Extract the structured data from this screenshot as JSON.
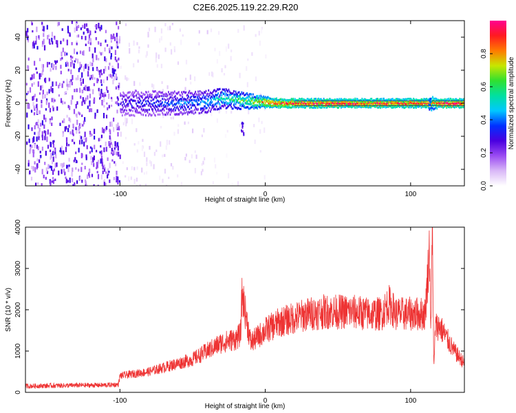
{
  "figure": {
    "title": "C2E6.2025.119.22.29.R20"
  },
  "chart_data": [
    {
      "type": "heatmap",
      "xlabel": "Height of straight line (km)",
      "ylabel": "Frequency (Hz)",
      "xlim": [
        -165,
        137
      ],
      "ylim": [
        -50,
        50
      ],
      "xticks": [
        -100,
        0,
        100
      ],
      "yticks": [
        -40,
        -20,
        0,
        20,
        40
      ],
      "grid": false,
      "colorbar": {
        "label": "Normalized spectral amplitude",
        "range": [
          0.0,
          1.0
        ],
        "ticks": [
          0.0,
          0.2,
          0.4,
          0.6,
          0.8
        ],
        "colors": [
          "#ffffff",
          "#d9b8f7",
          "#9b4cf2",
          "#4a00e0",
          "#0030ff",
          "#00c8ff",
          "#00e0a0",
          "#30e030",
          "#c8e600",
          "#ff7a00",
          "#ff1a20",
          "#ff0090"
        ]
      },
      "regions": [
        {
          "x_range": [
            -165,
            -100
          ],
          "freq_range": [
            -50,
            50
          ],
          "amplitude": 0.22,
          "description": "dense noise"
        },
        {
          "x_range": [
            -100,
            -40
          ],
          "freq_range": [
            -50,
            50
          ],
          "amplitude": 0.05,
          "description": "sparse noise"
        },
        {
          "x_range": [
            -40,
            0
          ],
          "freq_range": [
            -50,
            50
          ],
          "amplitude": 0.03,
          "description": "sparse noise"
        }
      ],
      "ridge": {
        "x": [
          -100,
          -80,
          -60,
          -40,
          -30,
          -20,
          -10,
          0,
          10,
          20,
          40,
          60,
          80,
          100,
          110,
          115,
          120,
          137
        ],
        "freq": [
          0,
          0,
          0,
          1,
          3,
          2,
          1,
          0.5,
          0,
          0,
          0,
          0,
          0,
          0,
          0,
          0,
          0,
          0
        ],
        "amplitude": [
          0.3,
          0.35,
          0.4,
          0.45,
          0.55,
          0.6,
          0.7,
          0.85,
          0.95,
          0.95,
          0.95,
          0.95,
          0.95,
          0.95,
          0.95,
          0.8,
          0.95,
          0.95
        ]
      },
      "features": [
        {
          "x": -16,
          "freq": -15,
          "amplitude": 0.25
        },
        {
          "x": 113,
          "freq": 0,
          "amplitude": 0.4
        }
      ]
    },
    {
      "type": "line",
      "xlabel": "Height of straight line (km)",
      "ylabel": "SNR (10 * v/v)",
      "xlim": [
        -165,
        137
      ],
      "ylim": [
        0,
        4000
      ],
      "xticks": [
        -100,
        0,
        100
      ],
      "yticks": [
        0,
        1000,
        2000,
        3000,
        4000
      ],
      "grid": false,
      "color": "#ee3333",
      "series": [
        {
          "x": [
            -165,
            -150,
            -130,
            -110,
            -101,
            -100,
            -90,
            -80,
            -70,
            -60,
            -50,
            -45,
            -40,
            -35,
            -30,
            -25,
            -20,
            -17,
            -16,
            -10,
            -5,
            0,
            10,
            20,
            30,
            40,
            50,
            60,
            70,
            80,
            85,
            90,
            100,
            110,
            113,
            114,
            115,
            116,
            117,
            120,
            125,
            130,
            137
          ],
          "values": [
            150,
            160,
            170,
            175,
            190,
            400,
            450,
            500,
            600,
            700,
            800,
            900,
            1000,
            1100,
            1200,
            1250,
            1300,
            1400,
            2400,
            1200,
            1350,
            1500,
            1700,
            1800,
            1900,
            1950,
            1950,
            1950,
            1900,
            1900,
            2150,
            1900,
            1900,
            1900,
            3500,
            1500,
            4000,
            500,
            1600,
            1600,
            1300,
            1000,
            700
          ]
        }
      ]
    }
  ]
}
